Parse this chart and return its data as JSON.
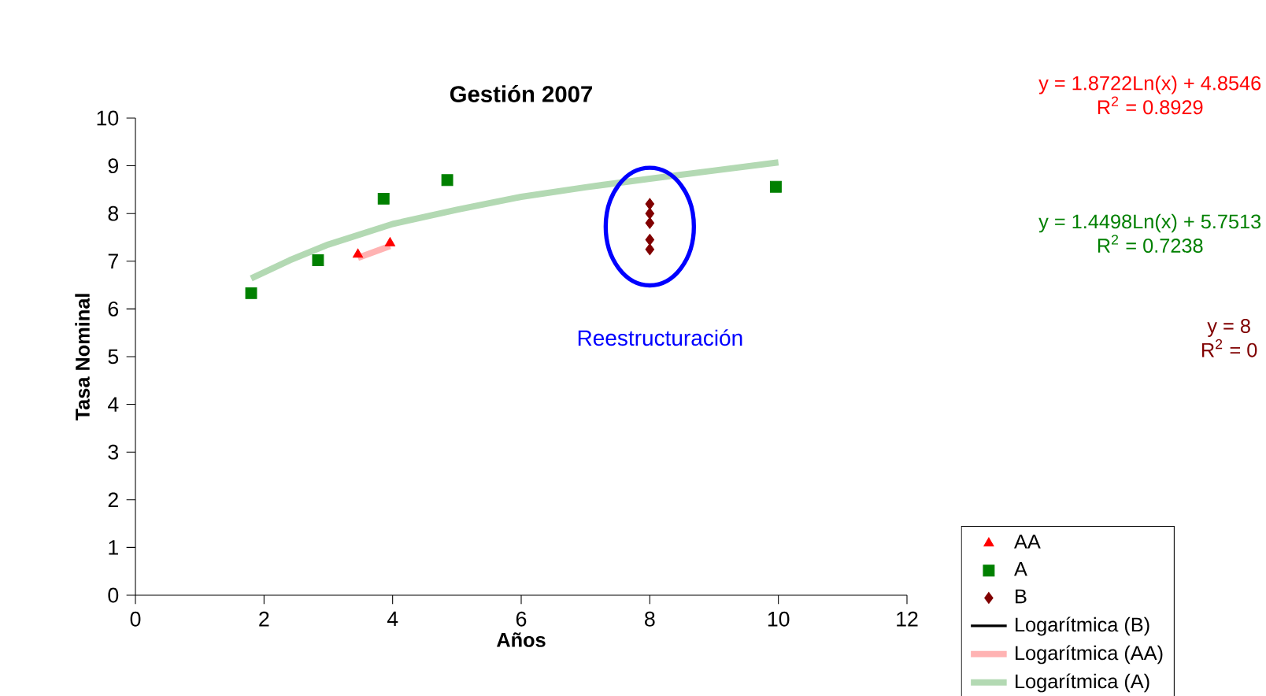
{
  "chart_data": {
    "type": "scatter",
    "title": "Gestión 2007",
    "xlabel": "Años",
    "ylabel": "Tasa Nominal",
    "xlim": [
      0,
      12
    ],
    "xticks": [
      0,
      2,
      4,
      6,
      8,
      10,
      12
    ],
    "ylim": [
      0,
      10
    ],
    "yticks": [
      0,
      1,
      2,
      3,
      4,
      5,
      6,
      7,
      8,
      9,
      10
    ],
    "grid": false,
    "legend": "bottom right",
    "series": [
      {
        "name": "AA",
        "marker": "triangle",
        "color": "#ff0000",
        "x": [
          3.46,
          3.96
        ],
        "values": [
          7.14,
          7.38
        ]
      },
      {
        "name": "A",
        "marker": "square",
        "color": "#008000",
        "x": [
          1.8,
          2.84,
          3.86,
          4.85,
          9.96
        ],
        "values": [
          6.33,
          7.02,
          8.31,
          8.7,
          8.56
        ]
      },
      {
        "name": "B",
        "marker": "diamond",
        "color": "#800000",
        "x": [
          8,
          8,
          8,
          8,
          8
        ],
        "values": [
          8.2,
          8.0,
          7.8,
          7.45,
          7.25
        ]
      },
      {
        "name": "Logarítmica (B)",
        "type": "line",
        "marker": "none",
        "line_style": "solid",
        "color": "#000000"
      },
      {
        "name": "Logarítmica (AA)",
        "type": "line",
        "marker": "none",
        "line_style": "solid",
        "color": "#ffb3b3",
        "x": [
          3.46,
          3.96
        ],
        "values": [
          7.07,
          7.32
        ]
      },
      {
        "name": "Logarítmica (A)",
        "type": "line",
        "marker": "none",
        "line_style": "solid",
        "color": "#b3d9b3",
        "x": [
          1.8,
          2.4,
          3.0,
          4.0,
          5.0,
          6.0,
          7.0,
          8.0,
          9.0,
          10.0
        ],
        "values": [
          6.64,
          7.02,
          7.35,
          7.78,
          8.08,
          8.35,
          8.55,
          8.73,
          8.9,
          9.07
        ]
      }
    ],
    "annotations": [
      "Reestructuración",
      "y = 1.8722Ln(x) + 4.8546",
      "R$^{2}$ = 0.8929",
      "y = 1.4498Ln(x) + 5.7513",
      "R$^{2}$ = 0.7238",
      "y = 8",
      "R$^{2}$ = 0"
    ]
  }
}
